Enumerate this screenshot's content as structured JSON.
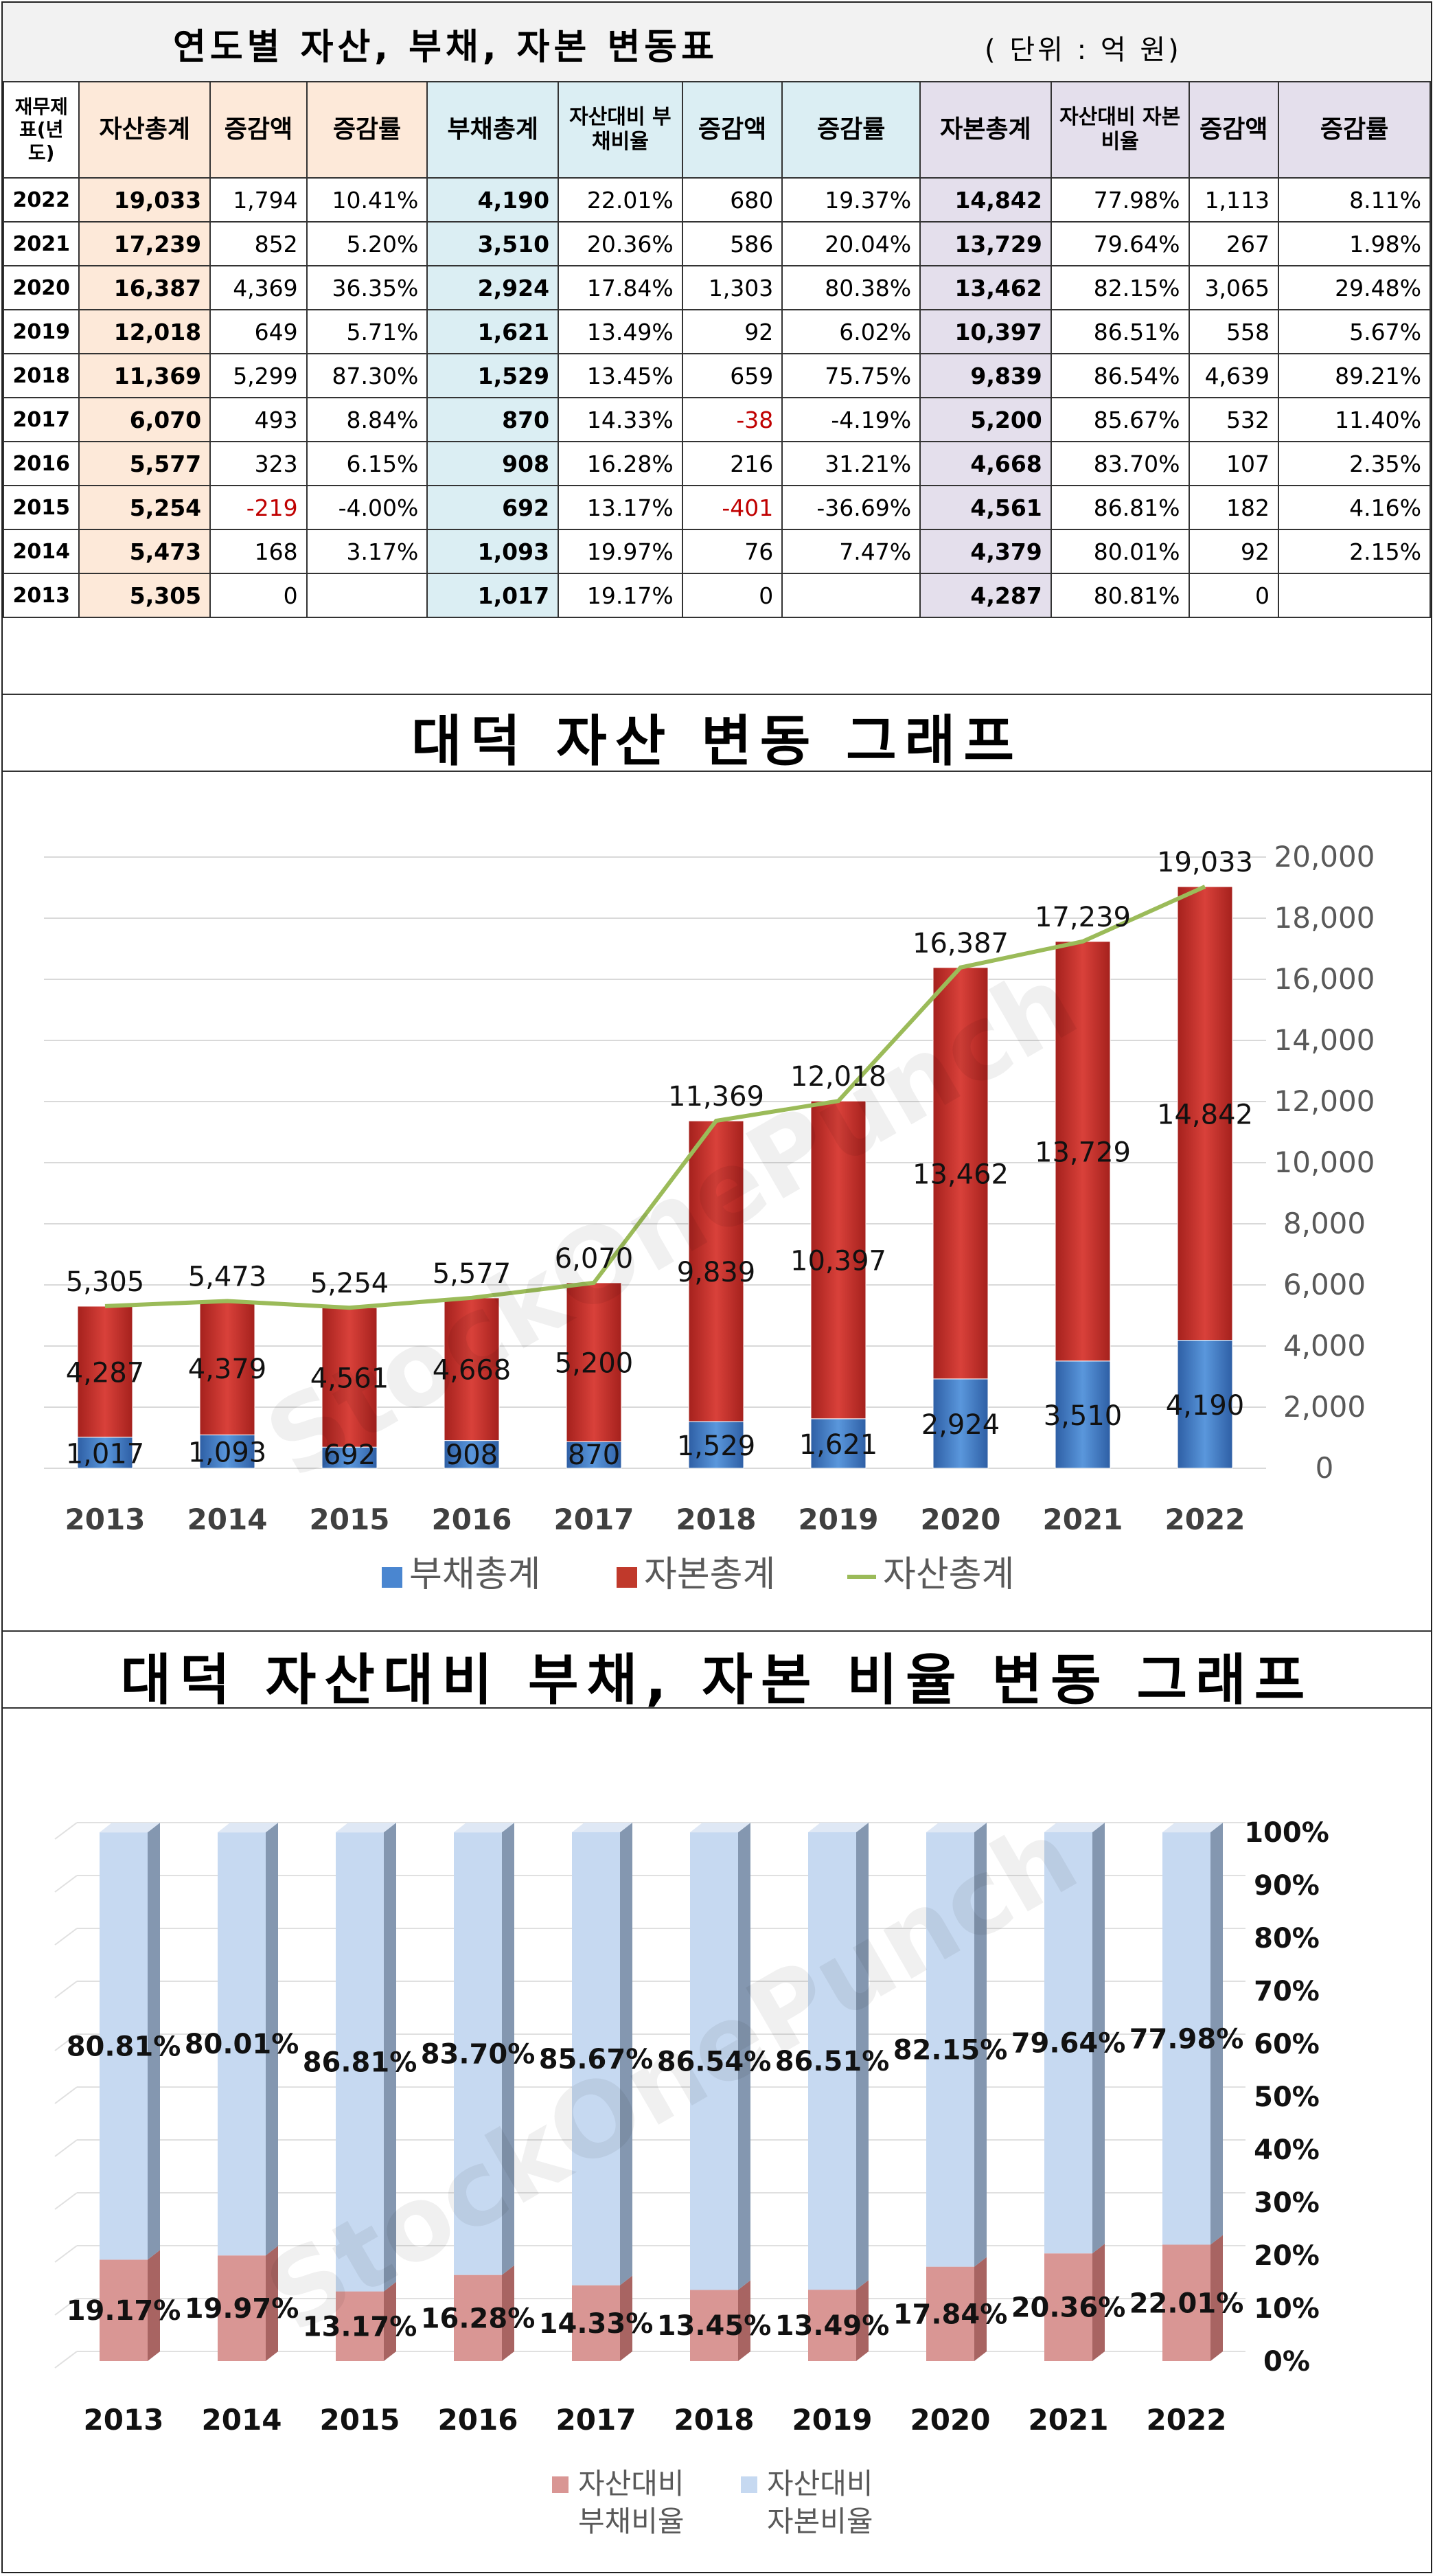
{
  "table": {
    "title": "연도별 자산, 부채, 자본 변동표",
    "unit": "( 단위 : 억 원)",
    "headers": [
      "재무제표(년도)",
      "자산총계",
      "증감액",
      "증감률",
      "부채총계",
      "자산대비 부채비율",
      "증감액",
      "증감률",
      "자본총계",
      "자산대비 자본비율",
      "증감액",
      "증감률"
    ],
    "rows": [
      [
        "2022",
        "19,033",
        "1,794",
        "10.41%",
        "4,190",
        "22.01%",
        "680",
        "19.37%",
        "14,842",
        "77.98%",
        "1,113",
        "8.11%"
      ],
      [
        "2021",
        "17,239",
        "852",
        "5.20%",
        "3,510",
        "20.36%",
        "586",
        "20.04%",
        "13,729",
        "79.64%",
        "267",
        "1.98%"
      ],
      [
        "2020",
        "16,387",
        "4,369",
        "36.35%",
        "2,924",
        "17.84%",
        "1,303",
        "80.38%",
        "13,462",
        "82.15%",
        "3,065",
        "29.48%"
      ],
      [
        "2019",
        "12,018",
        "649",
        "5.71%",
        "1,621",
        "13.49%",
        "92",
        "6.02%",
        "10,397",
        "86.51%",
        "558",
        "5.67%"
      ],
      [
        "2018",
        "11,369",
        "5,299",
        "87.30%",
        "1,529",
        "13.45%",
        "659",
        "75.75%",
        "9,839",
        "86.54%",
        "4,639",
        "89.21%"
      ],
      [
        "2017",
        "6,070",
        "493",
        "8.84%",
        "870",
        "14.33%",
        "-38",
        "-4.19%",
        "5,200",
        "85.67%",
        "532",
        "11.40%"
      ],
      [
        "2016",
        "5,577",
        "323",
        "6.15%",
        "908",
        "16.28%",
        "216",
        "31.21%",
        "4,668",
        "83.70%",
        "107",
        "2.35%"
      ],
      [
        "2015",
        "5,254",
        "-219",
        "-4.00%",
        "692",
        "13.17%",
        "-401",
        "-36.69%",
        "4,561",
        "86.81%",
        "182",
        "4.16%"
      ],
      [
        "2014",
        "5,473",
        "168",
        "3.17%",
        "1,093",
        "19.97%",
        "76",
        "7.47%",
        "4,379",
        "80.01%",
        "92",
        "2.15%"
      ],
      [
        "2013",
        "5,305",
        "0",
        "",
        "1,017",
        "19.17%",
        "0",
        "",
        "4,287",
        "80.81%",
        "0",
        ""
      ]
    ]
  },
  "watermark": "StockOnePunch",
  "colors": {
    "asset_bg": "#fde9d9",
    "liab_bg": "#dbeef3",
    "cap_bg": "#e4dfec",
    "liab_bar": "#4a86d0",
    "cap_bar": "#c0392b",
    "asset_line": "#9bbb59",
    "ratio_liab": "#d99694",
    "ratio_cap": "#c6d9f1",
    "negative": "#c00000"
  },
  "chart_data": [
    {
      "type": "bar",
      "stacked": true,
      "title": "대덕 자산 변동 그래프",
      "categories": [
        "2013",
        "2014",
        "2015",
        "2016",
        "2017",
        "2018",
        "2019",
        "2020",
        "2021",
        "2022"
      ],
      "series": [
        {
          "name": "부채총계",
          "type": "bar",
          "values": [
            1017,
            1093,
            692,
            908,
            870,
            1529,
            1621,
            2924,
            3510,
            4190
          ]
        },
        {
          "name": "자본총계",
          "type": "bar",
          "values": [
            4287,
            4379,
            4561,
            4668,
            5200,
            9839,
            10397,
            13462,
            13729,
            14842
          ]
        },
        {
          "name": "자산총계",
          "type": "line",
          "values": [
            5305,
            5473,
            5254,
            5577,
            6070,
            11369,
            12018,
            16387,
            17239,
            19033
          ]
        }
      ],
      "ylim": [
        0,
        20000
      ],
      "yticks": [
        "0",
        "2,000",
        "4,000",
        "6,000",
        "8,000",
        "10,000",
        "12,000",
        "14,000",
        "16,000",
        "18,000",
        "20,000"
      ],
      "legend": "bottom",
      "grid": true
    },
    {
      "type": "bar",
      "stacked": true,
      "title": "대덕 자산대비 부채, 자본 비율 변동 그래프",
      "categories": [
        "2013",
        "2014",
        "2015",
        "2016",
        "2017",
        "2018",
        "2019",
        "2020",
        "2021",
        "2022"
      ],
      "series": [
        {
          "name": "자산대비 부채비율",
          "values": [
            19.17,
            19.97,
            13.17,
            16.28,
            14.33,
            13.45,
            13.49,
            17.84,
            20.36,
            22.01
          ]
        },
        {
          "name": "자산대비 자본비율",
          "values": [
            80.81,
            80.01,
            86.81,
            83.7,
            85.67,
            86.54,
            86.51,
            82.15,
            79.64,
            77.98
          ]
        }
      ],
      "ylim": [
        0,
        100
      ],
      "yticks": [
        "0%",
        "10%",
        "20%",
        "30%",
        "40%",
        "50%",
        "60%",
        "70%",
        "80%",
        "90%",
        "100%"
      ],
      "legend": "bottom",
      "grid": true
    }
  ]
}
